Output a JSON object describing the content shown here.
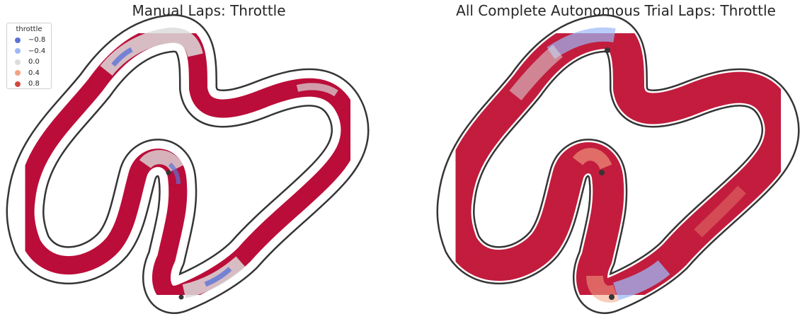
{
  "chart_data": [
    {
      "type": "scatter",
      "title": "Manual Laps: Throttle",
      "xlabel": "",
      "ylabel": "",
      "axes": "off",
      "hue": "throttle",
      "legend": {
        "title": "throttle",
        "placement": "upper-left",
        "entries": [
          {
            "label": "−0.8",
            "value": -0.8,
            "color": "#5b73d7"
          },
          {
            "label": "−0.4",
            "value": -0.4,
            "color": "#9db8f7"
          },
          {
            "label": "0.0",
            "value": 0.0,
            "color": "#dcdcdc"
          },
          {
            "label": "0.4",
            "value": 0.4,
            "color": "#f4a383"
          },
          {
            "label": "0.8",
            "value": 0.8,
            "color": "#cf4a3e"
          }
        ]
      },
      "dominant_throttle": 0.8,
      "low_throttle_regions": [
        {
          "location": "top straight",
          "throttle": 0.0
        },
        {
          "location": "inner top hairpin",
          "throttle": -0.8
        },
        {
          "location": "middle hairpin",
          "throttle": -0.4
        },
        {
          "location": "bottom right section",
          "throttle": -0.8
        }
      ]
    },
    {
      "type": "scatter",
      "title": "All Complete Autonomous Trial Laps: Throttle",
      "xlabel": "",
      "ylabel": "",
      "axes": "off",
      "hue": "throttle",
      "dominant_throttle": 0.8,
      "low_throttle_regions": [
        {
          "location": "top straight",
          "throttle": -0.4
        },
        {
          "location": "upper left straight",
          "throttle": 0.0
        },
        {
          "location": "bottom right section",
          "throttle": -0.4
        }
      ]
    }
  ],
  "colors": {
    "track_border": "#353535",
    "strong_throttle": "#b40426",
    "text": "#262626"
  }
}
